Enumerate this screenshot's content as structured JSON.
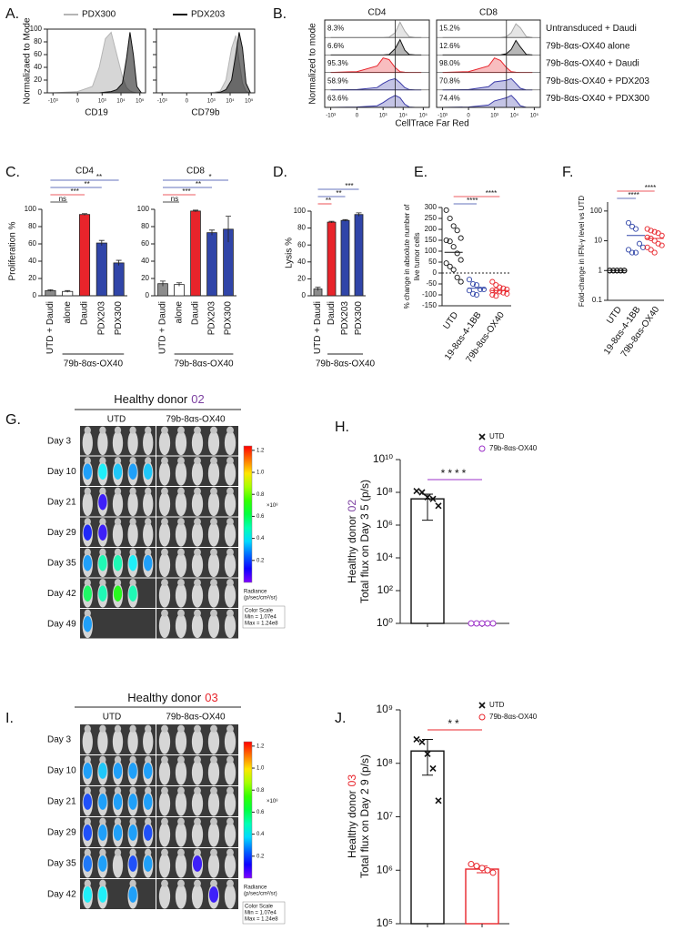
{
  "chart_data": [
    {
      "type": "flow-overlay",
      "panel_label": "A.",
      "ylabel": "Normalizaed to Mode",
      "xscale": "asinh",
      "xlim": [
        -2000,
        200000
      ],
      "xticks": [
        {
          "value": -1000,
          "label": "-10³"
        },
        0,
        {
          "value": 1000,
          "label": "10³"
        },
        {
          "value": 10000,
          "label": "10⁴"
        },
        {
          "value": 100000,
          "label": "10⁵"
        }
      ],
      "ylim": [
        0,
        100
      ],
      "yticks": [
        0,
        20,
        40,
        60,
        80,
        100
      ],
      "series": [
        {
          "name": "PDX300",
          "color": "#b5b5b5"
        },
        {
          "name": "PDX203",
          "color": "#111111"
        }
      ],
      "subplots": [
        {
          "xlabel": "CD19",
          "x": [
            -1000,
            0,
            300,
            700,
            1500,
            3000,
            6000,
            12000,
            20000,
            30000,
            45000,
            70000,
            120000
          ],
          "series_values": [
            [
              0,
              2,
              10,
              40,
              85,
              95,
              60,
              25,
              8,
              3,
              1,
              0,
              0
            ],
            [
              0,
              0,
              0,
              0,
              1,
              2,
              5,
              15,
              55,
              95,
              60,
              10,
              0
            ]
          ]
        },
        {
          "xlabel": "CD79b",
          "x": [
            -1000,
            0,
            300,
            700,
            1500,
            3000,
            6000,
            12000,
            20000,
            30000,
            45000,
            70000,
            120000
          ],
          "series_values": [
            [
              0,
              0,
              0,
              0,
              1,
              3,
              20,
              70,
              90,
              50,
              15,
              2,
              0
            ],
            [
              0,
              0,
              0,
              0,
              0,
              1,
              5,
              20,
              60,
              95,
              70,
              15,
              0
            ]
          ]
        }
      ]
    },
    {
      "type": "flow-stack",
      "panel_label": "B.",
      "ylabel": "Normalized to mode",
      "xlabel": "CellTrace Far Red",
      "xscale": "asinh",
      "xlim": [
        -2000,
        200000
      ],
      "xticks": [
        {
          "value": -1000,
          "label": "-10³"
        },
        0,
        {
          "value": 1000,
          "label": "10³"
        },
        {
          "value": 10000,
          "label": "10⁴"
        },
        {
          "value": 100000,
          "label": "10⁵"
        }
      ],
      "ylim": [
        0,
        100
      ],
      "gate": 4000,
      "rows": [
        {
          "name": "Untransduced + Daudi",
          "color": "#a8a8a8"
        },
        {
          "name": "79b-8αs-OX40 alone",
          "color": "#111111"
        },
        {
          "name": "79b-8αs-OX40 + Daudi",
          "color": "#e8242b"
        },
        {
          "name": "79b-8αs-OX40 + PDX203",
          "color": "#3c3ca8"
        },
        {
          "name": "79b-8αs-OX40 + PDX300",
          "color": "#3c3ca8"
        }
      ],
      "subplots": [
        {
          "title": "CD4",
          "percent_labels": [
            "8.3%",
            "6.6%",
            "95.3%",
            "58.9%",
            "63.6%"
          ],
          "x": [
            -1000,
            0,
            500,
            1000,
            2000,
            4000,
            7000,
            12000,
            20000,
            40000,
            80000
          ],
          "series_values": [
            [
              0,
              0,
              0,
              0,
              2,
              30,
              95,
              40,
              5,
              0,
              0
            ],
            [
              0,
              0,
              0,
              0,
              3,
              40,
              95,
              30,
              3,
              0,
              0
            ],
            [
              0,
              5,
              40,
              90,
              80,
              30,
              5,
              1,
              0,
              0,
              0
            ],
            [
              0,
              2,
              15,
              40,
              60,
              70,
              45,
              15,
              2,
              0,
              0
            ],
            [
              0,
              2,
              10,
              30,
              55,
              75,
              60,
              20,
              2,
              0,
              0
            ]
          ]
        },
        {
          "title": "CD8",
          "percent_labels": [
            "15.2%",
            "12.6%",
            "98.0%",
            "70.8%",
            "74.4%"
          ],
          "x": [
            -1000,
            0,
            500,
            1000,
            2000,
            4000,
            7000,
            12000,
            20000,
            40000,
            80000
          ],
          "series_values": [
            [
              0,
              0,
              0,
              0,
              0,
              5,
              30,
              85,
              60,
              5,
              0
            ],
            [
              0,
              0,
              0,
              0,
              0,
              8,
              35,
              90,
              50,
              3,
              0
            ],
            [
              0,
              5,
              40,
              90,
              75,
              30,
              5,
              1,
              0,
              0,
              0
            ],
            [
              0,
              2,
              20,
              50,
              55,
              60,
              70,
              40,
              10,
              0,
              0
            ],
            [
              0,
              2,
              15,
              40,
              50,
              60,
              75,
              45,
              10,
              0,
              0
            ]
          ]
        }
      ]
    },
    {
      "type": "bar",
      "panel_label": "C.",
      "ylabel": "Proliferation %",
      "group_label": "79b-8αs-OX40",
      "categories": [
        "UTD + Daudi",
        "alone",
        "Daudi",
        "PDX203",
        "PDX300"
      ],
      "colors": [
        "#8c8c8c",
        "#ffffff",
        "#e8242b",
        "#3045a8",
        "#3045a8"
      ],
      "ylim": [
        0,
        100
      ],
      "yticks": [
        0,
        20,
        40,
        60,
        80,
        100
      ],
      "subplots": [
        {
          "title": "CD4",
          "values": [
            6,
            5,
            94,
            61,
            38
          ],
          "errors": [
            1,
            1,
            1,
            3,
            3
          ],
          "sig_labels": [
            null,
            "ns",
            "***",
            "**",
            "**"
          ],
          "sig_colors": [
            null,
            "#111111",
            "#e8242b",
            "#3045a8",
            "#3045a8"
          ]
        },
        {
          "title": "CD8",
          "values": [
            14,
            13,
            98,
            73,
            77
          ],
          "errors": [
            3,
            2,
            1,
            3,
            15
          ],
          "sig_labels": [
            null,
            "ns",
            "***",
            "**",
            "*"
          ],
          "sig_colors": [
            null,
            "#111111",
            "#e8242b",
            "#3045a8",
            "#3045a8"
          ]
        }
      ]
    },
    {
      "type": "bar",
      "panel_label": "D.",
      "ylabel": "Lysis %",
      "group_label": "79b-8αs-OX40",
      "categories": [
        "UTD + Daudi",
        "Daudi",
        "PDX203",
        "PDX300"
      ],
      "colors": [
        "#8c8c8c",
        "#e8242b",
        "#3045a8",
        "#3045a8"
      ],
      "ylim": [
        0,
        100
      ],
      "yticks": [
        0,
        20,
        40,
        60,
        80,
        100
      ],
      "subplots": [
        {
          "values": [
            8,
            87,
            89,
            96
          ],
          "errors": [
            2,
            1,
            1,
            2
          ],
          "sig_labels": [
            null,
            "**",
            "**",
            "***"
          ],
          "sig_colors": [
            null,
            "#e8242b",
            "#3045a8",
            "#3045a8"
          ]
        }
      ]
    },
    {
      "type": "dot",
      "panel_label": "E.",
      "ylabel": [
        "% change in absolute number of",
        "live tumor cells"
      ],
      "ylim": [
        -150,
        300
      ],
      "yticks": [
        -150,
        -100,
        -50,
        0,
        50,
        100,
        150,
        200,
        250,
        300
      ],
      "hline": 0,
      "groups": [
        {
          "name": "UTD",
          "color": "#111111",
          "values": [
            288,
            250,
            215,
            195,
            160,
            150,
            145,
            120,
            90,
            60,
            45,
            30,
            15,
            -20,
            -40
          ],
          "mean": 95
        },
        {
          "name": "19-8αs-4-1BB",
          "color": "#3045a8",
          "values": [
            -30,
            -50,
            -55,
            -75,
            -75,
            -80,
            -95,
            -100
          ],
          "mean": -70
        },
        {
          "name": "79b-8αs-OX40",
          "color": "#e8242b",
          "values": [
            -40,
            -55,
            -65,
            -70,
            -75,
            -80,
            -80,
            -85,
            -90,
            -95,
            -100,
            -105
          ],
          "mean": -80
        }
      ],
      "sig_labels": [
        null,
        "****",
        "****"
      ]
    },
    {
      "type": "dot",
      "panel_label": "F.",
      "ylabel": [
        "Fold-change in IFN-γ level vs UTD"
      ],
      "log": true,
      "ylim": [
        0.1,
        200
      ],
      "yticks": [
        0.1,
        1,
        10,
        100
      ],
      "groups": [
        {
          "name": "UTD",
          "color": "#111111",
          "values": [
            1,
            1,
            1,
            1,
            1,
            1,
            1,
            1,
            1,
            1,
            1,
            1,
            1,
            1,
            1
          ],
          "mean": 1
        },
        {
          "name": "19-8αs-4-1BB",
          "color": "#3045a8",
          "values": [
            40,
            30,
            25,
            8,
            6,
            5,
            4,
            4
          ],
          "mean": 15
        },
        {
          "name": "79b-8αs-OX40",
          "color": "#e8242b",
          "values": [
            25,
            22,
            20,
            18,
            15,
            13,
            12,
            10,
            8,
            7,
            6,
            5,
            4
          ],
          "mean": 12
        }
      ],
      "sig_labels": [
        null,
        "****",
        "****"
      ]
    },
    {
      "type": "bar-dot",
      "panel_label": "H.",
      "ylabel_line1": "Healthy donor",
      "ylabel_donor": "02",
      "donor_color": "#7b3fa0",
      "ylabel_line2": "Total flux on Day 3 5 (p/s)",
      "log": true,
      "ylim": [
        1,
        10000000000
      ],
      "yticks": [
        {
          "value": 1,
          "label": "10⁰"
        },
        {
          "value": 100,
          "label": "10²"
        },
        {
          "value": 10000,
          "label": "10⁴"
        },
        {
          "value": 1000000,
          "label": "10⁶"
        },
        {
          "value": 100000000,
          "label": "10⁸"
        },
        {
          "value": 10000000000,
          "label": "10¹⁰"
        }
      ],
      "series": [
        {
          "name": "UTD",
          "color": "#111111",
          "marker": "x",
          "values": [
            120000000,
            100000000,
            50000000,
            40000000,
            15000000
          ],
          "bar": 40000000,
          "error": 38000000
        },
        {
          "name": "79b-8αs-OX40",
          "color": "#9b30c8",
          "marker": "o",
          "values": [
            1,
            1,
            1,
            1,
            1
          ],
          "bar": 1,
          "error": 0
        }
      ],
      "sig_label": "****",
      "sig_color": "#9b30c8"
    },
    {
      "type": "bar-dot",
      "panel_label": "J.",
      "ylabel_line1": "Healthy donor",
      "ylabel_donor": "03",
      "donor_color": "#e8242b",
      "ylabel_line2": "Total flux on Day 2 9 (p/s)",
      "log": true,
      "ylim": [
        100000,
        1000000000
      ],
      "yticks": [
        {
          "value": 100000,
          "label": "10⁵"
        },
        {
          "value": 1000000,
          "label": "10⁶"
        },
        {
          "value": 10000000,
          "label": "10⁷"
        },
        {
          "value": 100000000,
          "label": "10⁸"
        },
        {
          "value": 1000000000,
          "label": "10⁹"
        }
      ],
      "series": [
        {
          "name": "UTD",
          "color": "#111111",
          "marker": "x",
          "values": [
            280000000,
            250000000,
            150000000,
            80000000,
            20000000
          ],
          "bar": 170000000,
          "error": 110000000
        },
        {
          "name": "79b-8αs-OX40",
          "color": "#e8242b",
          "marker": "o",
          "values": [
            1300000,
            1200000,
            1100000,
            1000000,
            900000
          ],
          "bar": 1050000,
          "error": 150000
        }
      ],
      "sig_label": "**",
      "sig_color": "#e8242b"
    }
  ],
  "imaging": [
    {
      "panel_label": "G.",
      "title": "Healthy donor",
      "donor": "02",
      "donor_color": "#7b3fa0",
      "columns": [
        "UTD",
        "79b-8αs-OX40"
      ],
      "days": [
        "Day 3",
        "Day 10",
        "Day 21",
        "Day 29",
        "Day 35",
        "Day 42",
        "Day 49"
      ],
      "radiance": [
        [
          0,
          0,
          0,
          0,
          0,
          0,
          0,
          0,
          0,
          0
        ],
        [
          0.3,
          0.4,
          0.35,
          0.3,
          0.35,
          0,
          0,
          0,
          0,
          0
        ],
        [
          0,
          0.1,
          0,
          0,
          0,
          0,
          0,
          0,
          0,
          0
        ],
        [
          0.15,
          0.1,
          0,
          0,
          0,
          0,
          0,
          0,
          0,
          0
        ],
        [
          0.3,
          0.5,
          0.5,
          0.4,
          0.3,
          0,
          0,
          0,
          0,
          0
        ],
        [
          0.6,
          0.5,
          0.7,
          0.5,
          null,
          0,
          0,
          0,
          0,
          0
        ],
        [
          0.3,
          null,
          null,
          null,
          null,
          0,
          0,
          0,
          0,
          0
        ]
      ],
      "colorbar_lim": [
        0,
        1.24
      ],
      "colorbar_ticks": [
        0.2,
        0.4,
        0.6,
        0.8,
        {
          "value": 1,
          "label": "1.0"
        },
        1.2
      ],
      "colorbar_unit": "×10⁸",
      "radiance_label": [
        "Radiance",
        "(p/sec/cm²/sr)"
      ],
      "scale_text": [
        "Color Scale",
        "Min = 1.07e4",
        "Max = 1.24e8"
      ]
    },
    {
      "panel_label": "I.",
      "title": "Healthy donor",
      "donor": "03",
      "donor_color": "#e8242b",
      "columns": [
        "UTD",
        "79b-8αs-OX40"
      ],
      "days": [
        "Day 3",
        "Day 10",
        "Day 21",
        "Day 29",
        "Day 35",
        "Day 42"
      ],
      "radiance": [
        [
          0,
          0,
          0,
          0,
          0,
          0,
          0,
          0,
          0,
          0
        ],
        [
          0.3,
          0.35,
          0.3,
          0.3,
          0.3,
          0,
          0,
          0,
          0,
          0
        ],
        [
          0.2,
          0.3,
          0.3,
          0.3,
          0.3,
          0,
          0,
          0,
          0,
          0
        ],
        [
          0.2,
          0.3,
          0.3,
          0.3,
          0.2,
          0,
          0,
          0,
          0,
          0
        ],
        [
          0.25,
          0.3,
          0,
          0.2,
          0.3,
          0,
          0,
          0.1,
          0,
          0
        ],
        [
          0.4,
          0.4,
          null,
          0.3,
          null,
          0,
          0,
          0,
          0.1,
          0
        ]
      ],
      "colorbar_lim": [
        0,
        1.24
      ],
      "colorbar_ticks": [
        0.2,
        0.4,
        0.6,
        0.8,
        {
          "value": 1,
          "label": "1.0"
        },
        1.2
      ],
      "colorbar_unit": "×10⁸",
      "radiance_label": [
        "Radiance",
        "(p/sec/cm²/sr)"
      ],
      "scale_text": [
        "Color Scale",
        "Min = 1.07e4",
        "Max = 1.24e8"
      ]
    }
  ]
}
